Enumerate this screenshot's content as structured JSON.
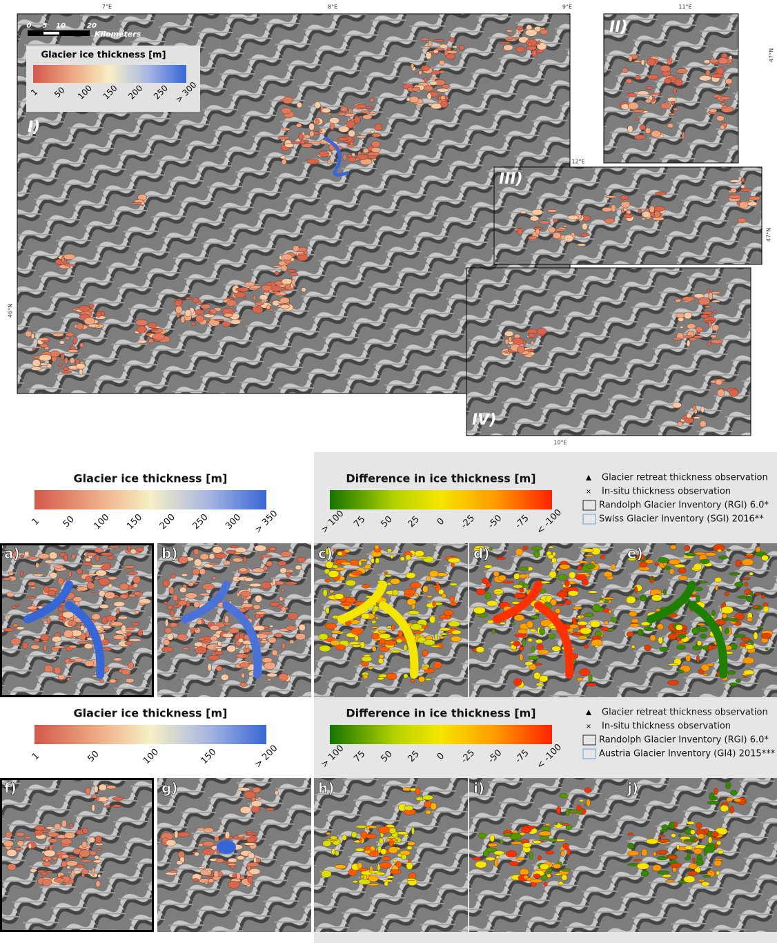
{
  "map": {
    "lon_labels": [
      "7°E",
      "8°E",
      "9°E",
      "11°E",
      "12°E",
      "10°E"
    ],
    "lat_labels": [
      "46°N",
      "47°N",
      "47°N"
    ],
    "scale_bar": {
      "ticks": [
        0,
        5,
        10,
        20
      ],
      "unit": "Kilometers"
    },
    "legend": {
      "title": "Glacier ice thickness [m]",
      "ticks": [
        1,
        50,
        100,
        150,
        200,
        250,
        "> 300"
      ]
    },
    "panels": [
      "I)",
      "II)",
      "III)",
      "IV)"
    ]
  },
  "rows": [
    {
      "thickness_legend": {
        "title": "Glacier ice thickness [m]",
        "ticks": [
          1,
          50,
          100,
          150,
          200,
          250,
          300,
          "> 350"
        ]
      },
      "difference_legend": {
        "title": "Difference in ice thickness [m]",
        "ticks": [
          "> 100",
          75,
          50,
          25,
          0,
          -25,
          -50,
          -75,
          "< -100"
        ]
      },
      "symbols": [
        "Glacier retreat thickness observation",
        "In-situ thickness observation",
        "Randolph Glacier Inventory (RGI) 6.0*",
        "Swiss Glacier Inventory (SGI) 2016**"
      ],
      "panels": [
        "a)",
        "b)",
        "c)",
        "d)",
        "e)"
      ]
    },
    {
      "thickness_legend": {
        "title": "Glacier ice thickness [m]",
        "ticks": [
          1,
          50,
          100,
          150,
          "> 200"
        ]
      },
      "difference_legend": {
        "title": "Difference in ice thickness [m]",
        "ticks": [
          "> 100",
          75,
          50,
          25,
          0,
          -25,
          -50,
          -75,
          "< -100"
        ]
      },
      "symbols": [
        "Glacier retreat thickness observation",
        "In-situ thickness observation",
        "Randolph Glacier Inventory (RGI) 6.0*",
        "Austria Glacier Inventory (GI4) 2015***"
      ],
      "panels": [
        "f)",
        "g)",
        "h)",
        "i)",
        "j)"
      ]
    }
  ]
}
